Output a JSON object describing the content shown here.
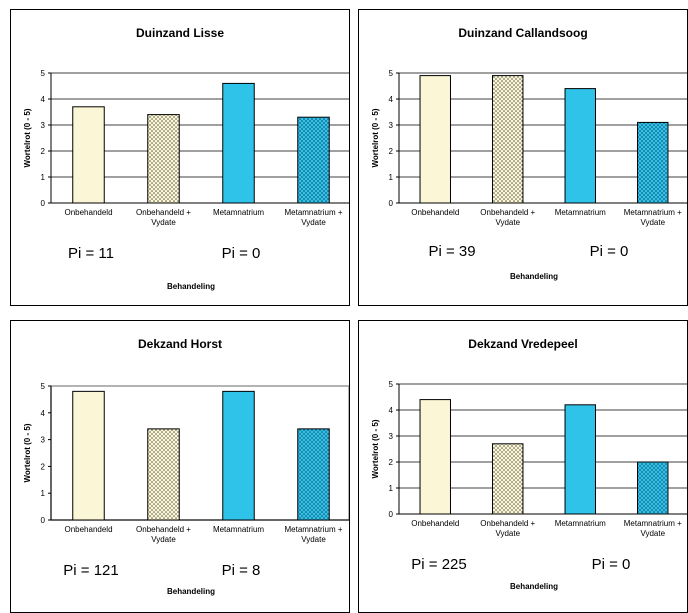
{
  "colors": {
    "untreated": "#fbf6d6",
    "metam": "#30c3ea",
    "dots": "#4a4a3a",
    "metam_dots": "#0f3b5c"
  },
  "chart_data": [
    {
      "type": "bar",
      "title": "Duinzand Lisse",
      "ylabel": "Wortelrot (0 - 5)",
      "xlabel": "Behandeling",
      "ylim": [
        0,
        5
      ],
      "yticks": [
        "0",
        "1",
        "2",
        "3",
        "4",
        "5"
      ],
      "grid": true,
      "categories": [
        "Onbehandeld",
        "Onbehandeld + Vydate",
        "Metamnatrium",
        "Metamnatrium + Vydate"
      ],
      "values": [
        3.7,
        3.4,
        4.6,
        3.3
      ],
      "annotations": [
        "Pi = 11",
        "Pi = 0"
      ]
    },
    {
      "type": "bar",
      "title": "Duinzand Callandsoog",
      "ylabel": "Wortelrot (0 - 5)",
      "xlabel": "Behandeling",
      "ylim": [
        0,
        5
      ],
      "yticks": [
        "0",
        "1",
        "2",
        "3",
        "4",
        "5"
      ],
      "grid": true,
      "categories": [
        "Onbehandeld",
        "Onbehandeld + Vydate",
        "Metamnatrium",
        "Metamnatrium + Vydate"
      ],
      "values": [
        4.9,
        4.9,
        4.4,
        3.1
      ],
      "annotations": [
        "Pi = 39",
        "Pi = 0"
      ]
    },
    {
      "type": "bar",
      "title": "Dekzand Horst",
      "ylabel": "Wortelrot (0 - 5)",
      "xlabel": "Behandeling",
      "ylim": [
        0,
        5
      ],
      "yticks": [
        "0",
        "1",
        "2",
        "3",
        "4",
        "5"
      ],
      "grid": false,
      "categories": [
        "Onbehandeld",
        "Onbehandeld + Vydate",
        "Metamnatrium",
        "Metamnatrium + Vydate"
      ],
      "values": [
        4.8,
        3.4,
        4.8,
        3.4
      ],
      "annotations": [
        "Pi = 121",
        "Pi = 8"
      ]
    },
    {
      "type": "bar",
      "title": "Dekzand Vredepeel",
      "ylabel": "Wortelrot (0 - 5)",
      "xlabel": "Behandeling",
      "ylim": [
        0,
        5
      ],
      "yticks": [
        "0",
        "1",
        "2",
        "3",
        "4",
        "5"
      ],
      "grid": true,
      "categories": [
        "Onbehandeld",
        "Onbehandeld + Vydate",
        "Metamnatrium",
        "Metamnatrium + Vydate"
      ],
      "values": [
        4.4,
        2.7,
        4.2,
        2.0
      ],
      "annotations": [
        "Pi = 225",
        "Pi = 0"
      ]
    }
  ]
}
